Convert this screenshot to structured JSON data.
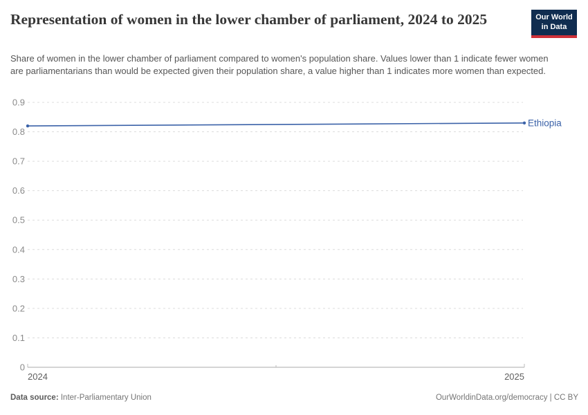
{
  "header": {
    "title": "Representation of women in the lower chamber of parliament, 2024 to 2025",
    "subtitle": "Share of women in the lower chamber of parliament compared to women's population share. Values lower than 1 indicate fewer women are parliamentarians than would be expected given their population share, a value higher than 1 indicates more women than expected.",
    "logo": {
      "line1": "Our World",
      "line2": "in Data"
    }
  },
  "footer": {
    "source_label": "Data source:",
    "source_value": " Inter-Parliamentary Union",
    "attribution": "OurWorldinData.org/democracy | CC BY"
  },
  "chart_data": {
    "type": "line",
    "title": "Representation of women in the lower chamber of parliament, 2024 to 2025",
    "x": [
      2024,
      2025
    ],
    "series": [
      {
        "name": "Ethiopia",
        "values": [
          0.82,
          0.83
        ],
        "color": "#3b62a8"
      }
    ],
    "xlabel": "",
    "ylabel": "",
    "xlim": [
      2024,
      2025
    ],
    "ylim": [
      0,
      0.9
    ],
    "ytick_step": 0.1,
    "yticks": [
      0,
      0.1,
      0.2,
      0.3,
      0.4,
      0.5,
      0.6,
      0.7,
      0.8,
      0.9
    ],
    "xticks": [
      2024,
      2025
    ],
    "grid": "horizontal-dashed",
    "legend": "line-end-label"
  },
  "colors": {
    "line": "#3b62a8",
    "grid": "#dcdcdc",
    "axis": "#a8a8a8",
    "axis_tick": "#bbbbbb",
    "ytick_label": "#8a8a8a",
    "xtick_label": "#5f5f5f",
    "title": "#373737",
    "subtitle": "#555555",
    "logo_bg": "#102d50",
    "logo_stripe": "#cf3139"
  }
}
